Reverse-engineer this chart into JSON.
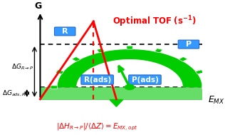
{
  "bg_color": "#ffffff",
  "green_color": "#00cc00",
  "green_light": "#99ee99",
  "blue_box_color": "#3399ff",
  "red_color": "#ff0000",
  "black": "#000000",
  "title": "Optimal TOF (s⁻¹)",
  "xlabel": "E_{MX}",
  "ylabel": "G",
  "label_R": "R",
  "label_P": "P",
  "label_Rads": "R(ads)",
  "label_Pads": "P(ads)",
  "label_dGRP": "ΔG_{R→P}",
  "label_dGadsR": "ΔG_{ads,R}",
  "label_bottom": "|ΔH_{R→P}|/⟨ΔZ⟩ = E_{MX,opt}",
  "figsize": [
    3.16,
    1.89
  ],
  "dpi": 100
}
